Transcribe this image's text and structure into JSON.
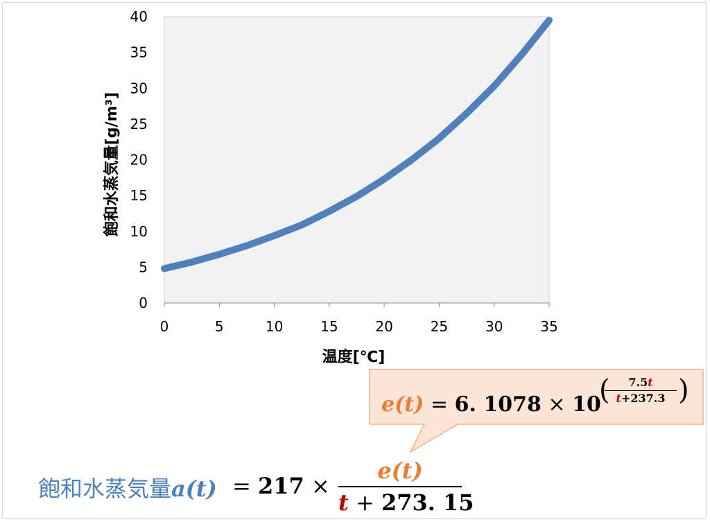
{
  "chart_data": {
    "type": "line",
    "xlabel": "温度[℃]",
    "ylabel": "飽和水蒸気量[g/m³]",
    "xlim": [
      0,
      35
    ],
    "ylim": [
      0,
      40
    ],
    "x_ticks": [
      "0",
      "5",
      "10",
      "15",
      "20",
      "25",
      "30",
      "35"
    ],
    "y_ticks": [
      "0",
      "5",
      "10",
      "15",
      "20",
      "25",
      "30",
      "35",
      "40"
    ],
    "grid": false,
    "legend": "none",
    "series": [
      {
        "color": "#4f81bd",
        "x": [
          0,
          2.5,
          5,
          7.5,
          10,
          12.5,
          15,
          17.5,
          20,
          22.5,
          25,
          27.5,
          30,
          32.5,
          35
        ],
        "y": [
          4.8,
          5.7,
          6.8,
          8.0,
          9.4,
          10.9,
          12.8,
          14.9,
          17.3,
          20.0,
          23.0,
          26.5,
          30.3,
          34.7,
          39.5
        ]
      }
    ],
    "plot_background": "#f2f2f2"
  },
  "formulas": {
    "callout": {
      "lhs": "e(t)",
      "eq": "=",
      "coef": "6. 1078",
      "times": "×",
      "base": "10",
      "open_paren": "(",
      "close_paren": ")",
      "exp_num_a": "7.5",
      "exp_num_b": "t",
      "exp_den_a": "t",
      "exp_den_b": "+237.3"
    },
    "main": {
      "label": "飽和水蒸気量",
      "fn": "a(t)",
      "eq": "=",
      "coef": "217",
      "times": "×",
      "num": "e(t)",
      "den_a": "t",
      "den_op": "+",
      "den_b": "273. 15"
    }
  },
  "colors": {
    "series": "#4f81bd",
    "callout_fill": "#fbe5d6",
    "callout_border": "#f4b183",
    "e_of_t": "#ed7d31",
    "t_var": "#c00000"
  }
}
